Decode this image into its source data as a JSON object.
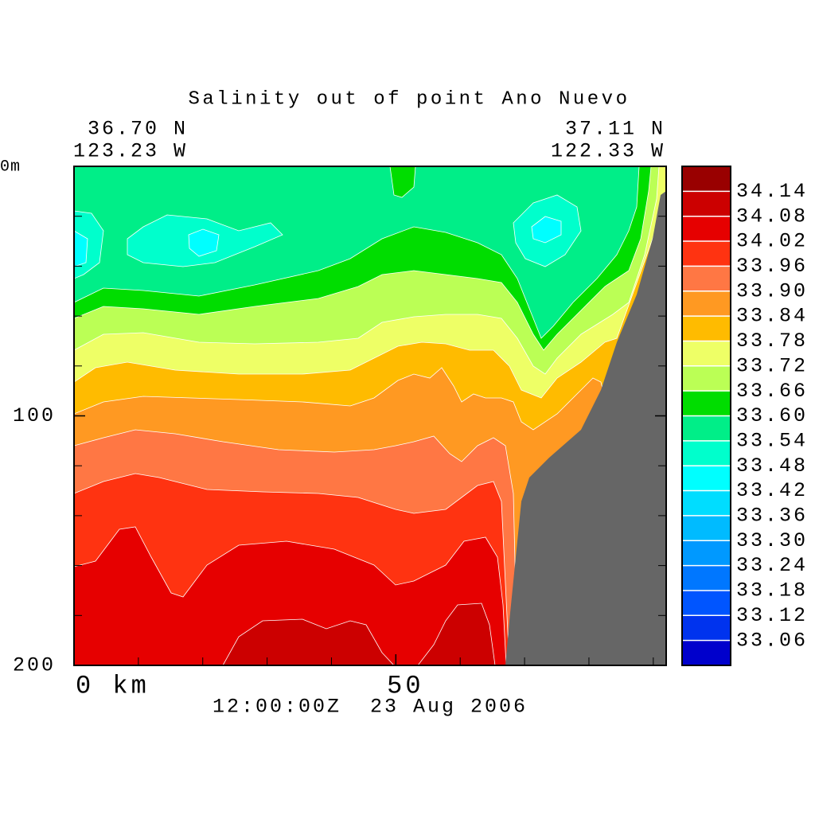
{
  "chart_data": {
    "type": "contour",
    "title": "Salinity out of point Ano Nuevo",
    "left_position": [
      "36.70 N",
      "123.23 W"
    ],
    "right_position": [
      "37.11 N",
      "122.33 W"
    ],
    "footer": "12:00:00Z  23 Aug 2006",
    "xlim": [
      0,
      92
    ],
    "xticks": [
      {
        "value": 0,
        "label": "0 km"
      },
      50
    ],
    "minor_xticks": [
      10,
      20,
      30,
      40,
      60,
      70,
      80,
      90
    ],
    "ylim": [
      0,
      200
    ],
    "y_inverted": true,
    "yticks": [
      {
        "value": 0,
        "label": "0m"
      },
      100,
      200
    ],
    "minor_yticks": [
      20,
      40,
      60,
      80,
      120,
      140,
      160,
      180
    ],
    "levels": [
      33.06,
      33.12,
      33.18,
      33.24,
      {
        "value": 33.3,
        "label": "33.30"
      },
      33.36,
      33.42,
      33.48,
      33.54,
      {
        "value": 33.6,
        "label": "33.60"
      },
      33.66,
      33.72,
      33.78,
      33.84,
      {
        "value": 33.9,
        "label": "33.90"
      },
      33.96,
      34.02,
      34.08,
      34.14
    ],
    "colors": [
      "#0000cc",
      "#0033ee",
      "#0055ff",
      "#0077ff",
      "#0099ff",
      "#00bbff",
      "#00ddff",
      "#00ffff",
      "#00ffcc",
      "#00ee88",
      "#00dd00",
      "#bbff55",
      "#eeff66",
      "#ffbb00",
      "#ff9922",
      "#ff7744",
      "#ff3311",
      "#e60000",
      "#cc0000",
      "#990000"
    ],
    "land_color": "#666666"
  }
}
